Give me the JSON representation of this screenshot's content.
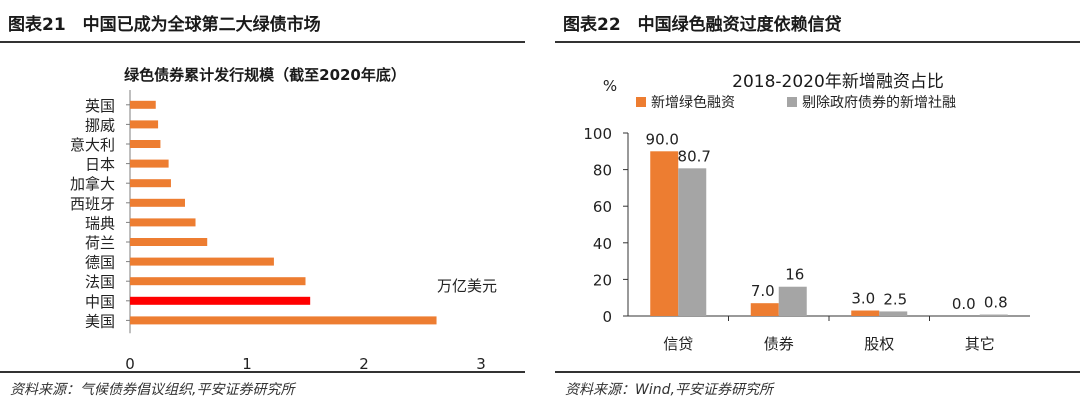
{
  "left": {
    "title": "图表21　中国已成为全球第二大绿债市场",
    "source": "资料来源：气候债券倡议组织,平安证券研究所",
    "colors": {
      "bar": "#ED7D31",
      "highlight": "#FF0000"
    },
    "chart_data": {
      "type": "bar",
      "orientation": "horizontal",
      "title": "绿色债券累计发行规模（截至2020年底）",
      "unit_label": "万亿美元",
      "categories": [
        "英国",
        "挪威",
        "意大利",
        "日本",
        "加拿大",
        "西班牙",
        "瑞典",
        "荷兰",
        "德国",
        "法国",
        "中国",
        "美国"
      ],
      "values": [
        0.22,
        0.24,
        0.26,
        0.33,
        0.35,
        0.47,
        0.56,
        0.66,
        1.23,
        1.5,
        1.54,
        2.62
      ],
      "highlight_category": "中国",
      "xlim": [
        0,
        3
      ],
      "xticks": [
        0,
        1,
        2,
        3
      ],
      "grid": false
    }
  },
  "right": {
    "title": "图表22　中国绿色融资过度依赖信贷",
    "source": "资料来源：Wind,平安证券研究所",
    "colors": {
      "series1": "#ED7D31",
      "series2": "#A5A5A5"
    },
    "chart_data": {
      "type": "bar",
      "title": "2018-2020年新增融资占比",
      "ylabel": "%",
      "categories": [
        "信贷",
        "债券",
        "股权",
        "其它"
      ],
      "series": [
        {
          "name": "新增绿色融资",
          "values": [
            90.0,
            7.0,
            3.0,
            0.0
          ],
          "labels": [
            "90.0",
            "7.0",
            "3.0",
            "0.0"
          ]
        },
        {
          "name": "剔除政府债券的新增社融",
          "values": [
            80.7,
            16,
            2.5,
            0.8
          ],
          "labels": [
            "80.7",
            "16",
            "2.5",
            "0.8"
          ]
        }
      ],
      "ylim": [
        0,
        100
      ],
      "yticks": [
        0,
        20,
        40,
        60,
        80,
        100
      ],
      "legend_position": "top",
      "grid": false
    }
  }
}
